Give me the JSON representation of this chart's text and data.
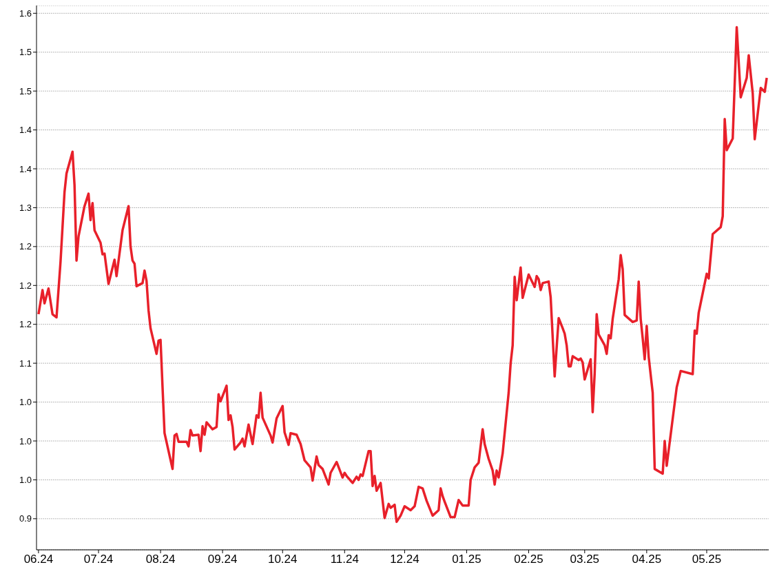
{
  "chart_data": {
    "type": "line",
    "x": [
      "2024-06-01",
      "2024-06-03",
      "2024-06-04",
      "2024-06-06",
      "2024-06-08",
      "2024-06-10",
      "2024-06-12",
      "2024-06-14",
      "2024-06-15",
      "2024-06-18",
      "2024-06-19",
      "2024-06-20",
      "2024-06-21",
      "2024-06-24",
      "2024-06-26",
      "2024-06-27",
      "2024-06-28",
      "2024-06-29",
      "2024-07-02",
      "2024-07-03",
      "2024-07-04",
      "2024-07-06",
      "2024-07-09",
      "2024-07-10",
      "2024-07-13",
      "2024-07-16",
      "2024-07-17",
      "2024-07-18",
      "2024-07-19",
      "2024-07-20",
      "2024-07-23",
      "2024-07-24",
      "2024-07-25",
      "2024-07-26",
      "2024-07-27",
      "2024-07-30",
      "2024-07-31",
      "2024-08-01",
      "2024-08-02",
      "2024-08-03",
      "2024-08-07",
      "2024-08-08",
      "2024-08-09",
      "2024-08-10",
      "2024-08-14",
      "2024-08-15",
      "2024-08-16",
      "2024-08-17",
      "2024-08-20",
      "2024-08-21",
      "2024-08-22",
      "2024-08-23",
      "2024-08-24",
      "2024-08-27",
      "2024-08-29",
      "2024-08-30",
      "2024-08-31",
      "2024-09-03",
      "2024-09-04",
      "2024-09-05",
      "2024-09-06",
      "2024-09-07",
      "2024-09-10",
      "2024-09-11",
      "2024-09-12",
      "2024-09-14",
      "2024-09-16",
      "2024-09-18",
      "2024-09-19",
      "2024-09-20",
      "2024-09-21",
      "2024-09-25",
      "2024-09-26",
      "2024-09-28",
      "2024-10-01",
      "2024-10-02",
      "2024-10-04",
      "2024-10-05",
      "2024-10-08",
      "2024-10-10",
      "2024-10-12",
      "2024-10-15",
      "2024-10-16",
      "2024-10-18",
      "2024-10-19",
      "2024-10-21",
      "2024-10-24",
      "2024-10-25",
      "2024-10-28",
      "2024-10-31",
      "2024-11-01",
      "2024-11-02",
      "2024-11-05",
      "2024-11-07",
      "2024-11-08",
      "2024-11-09",
      "2024-11-10",
      "2024-11-13",
      "2024-11-14",
      "2024-11-15",
      "2024-11-16",
      "2024-11-17",
      "2024-11-19",
      "2024-11-21",
      "2024-11-23",
      "2024-11-24",
      "2024-11-26",
      "2024-11-27",
      "2024-11-29",
      "2024-12-01",
      "2024-12-04",
      "2024-12-06",
      "2024-12-08",
      "2024-12-10",
      "2024-12-12",
      "2024-12-15",
      "2024-12-18",
      "2024-12-19",
      "2024-12-20",
      "2024-12-21",
      "2024-12-24",
      "2024-12-26",
      "2024-12-28",
      "2024-12-30",
      "2025-01-02",
      "2025-01-03",
      "2025-01-05",
      "2025-01-07",
      "2025-01-09",
      "2025-01-10",
      "2025-01-12",
      "2025-01-14",
      "2025-01-15",
      "2025-01-16",
      "2025-01-17",
      "2025-01-19",
      "2025-01-22",
      "2025-01-23",
      "2025-01-24",
      "2025-01-25",
      "2025-01-26",
      "2025-01-28",
      "2025-01-29",
      "2025-02-01",
      "2025-02-04",
      "2025-02-05",
      "2025-02-06",
      "2025-02-07",
      "2025-02-08",
      "2025-02-11",
      "2025-02-12",
      "2025-02-14",
      "2025-02-16",
      "2025-02-18",
      "2025-02-19",
      "2025-02-20",
      "2025-02-21",
      "2025-02-22",
      "2025-02-23",
      "2025-02-26",
      "2025-02-27",
      "2025-02-28",
      "2025-03-01",
      "2025-03-04",
      "2025-03-05",
      "2025-03-06",
      "2025-03-07",
      "2025-03-08",
      "2025-03-11",
      "2025-03-12",
      "2025-03-13",
      "2025-03-14",
      "2025-03-15",
      "2025-03-18",
      "2025-03-19",
      "2025-03-20",
      "2025-03-21",
      "2025-03-25",
      "2025-03-27",
      "2025-03-28",
      "2025-03-29",
      "2025-03-30",
      "2025-03-31",
      "2025-04-01",
      "2025-04-02",
      "2025-04-04",
      "2025-04-05",
      "2025-04-09",
      "2025-04-10",
      "2025-04-11",
      "2025-04-16",
      "2025-04-18",
      "2025-04-24",
      "2025-04-25",
      "2025-04-26",
      "2025-04-27",
      "2025-05-01",
      "2025-05-02",
      "2025-05-04",
      "2025-05-08",
      "2025-05-09",
      "2025-05-10",
      "2025-05-11",
      "2025-05-14",
      "2025-05-16",
      "2025-05-18",
      "2025-05-21",
      "2025-05-22",
      "2025-05-24",
      "2025-05-25",
      "2025-05-28",
      "2025-05-30",
      "2025-05-31"
    ],
    "series": [
      {
        "color": "#e8202a",
        "values": [
          1.163,
          1.194,
          1.177,
          1.196,
          1.163,
          1.159,
          1.23,
          1.32,
          1.344,
          1.372,
          1.329,
          1.232,
          1.263,
          1.302,
          1.318,
          1.284,
          1.306,
          1.271,
          1.255,
          1.24,
          1.241,
          1.202,
          1.233,
          1.212,
          1.271,
          1.302,
          1.25,
          1.232,
          1.228,
          1.199,
          1.203,
          1.219,
          1.206,
          1.168,
          1.145,
          1.112,
          1.129,
          1.13,
          1.069,
          1.01,
          0.964,
          1.007,
          1.009,
          0.999,
          0.999,
          0.993,
          1.014,
          1.007,
          1.008,
          0.987,
          1.019,
          1.008,
          1.024,
          1.015,
          1.018,
          1.06,
          1.051,
          1.071,
          1.027,
          1.033,
          1.018,
          0.989,
          0.998,
          1.003,
          0.993,
          1.021,
          0.996,
          1.033,
          1.03,
          1.062,
          1.03,
          1.007,
          0.998,
          1.029,
          1.045,
          1.011,
          0.995,
          1.01,
          1.008,
          0.996,
          0.975,
          0.966,
          0.949,
          0.98,
          0.969,
          0.964,
          0.944,
          0.959,
          0.973,
          0.953,
          0.959,
          0.955,
          0.946,
          0.954,
          0.95,
          0.957,
          0.955,
          0.987,
          0.987,
          0.942,
          0.955,
          0.936,
          0.946,
          0.901,
          0.919,
          0.914,
          0.918,
          0.896,
          0.904,
          0.916,
          0.911,
          0.916,
          0.941,
          0.939,
          0.923,
          0.904,
          0.911,
          0.939,
          0.929,
          0.922,
          0.902,
          0.902,
          0.924,
          0.917,
          0.917,
          0.95,
          0.966,
          0.972,
          1.015,
          0.996,
          0.977,
          0.962,
          0.944,
          0.962,
          0.953,
          0.984,
          1.062,
          1.1,
          1.123,
          1.211,
          1.181,
          1.223,
          1.184,
          1.214,
          1.198,
          1.212,
          1.208,
          1.194,
          1.203,
          1.205,
          1.185,
          1.083,
          1.158,
          1.145,
          1.138,
          1.123,
          1.096,
          1.096,
          1.109,
          1.104,
          1.106,
          1.101,
          1.079,
          1.105,
          1.037,
          1.087,
          1.163,
          1.137,
          1.123,
          1.112,
          1.136,
          1.132,
          1.157,
          1.208,
          1.239,
          1.221,
          1.162,
          1.153,
          1.155,
          1.205,
          1.157,
          1.132,
          1.105,
          1.148,
          1.108,
          1.062,
          0.964,
          0.958,
          1.0,
          0.968,
          1.069,
          1.09,
          1.086,
          1.142,
          1.138,
          1.165,
          1.215,
          1.209,
          1.266,
          1.275,
          1.289,
          1.414,
          1.374,
          1.389,
          1.532,
          1.442,
          1.467,
          1.496,
          1.447,
          1.388,
          1.454,
          1.449,
          1.467
        ]
      }
    ],
    "xlim": [
      "2024-05-31",
      "2025-06-01"
    ],
    "xticks": [
      {
        "value": "2024-06-01",
        "label": "06.24"
      },
      {
        "value": "2024-07-01",
        "label": "07.24"
      },
      {
        "value": "2024-08-01",
        "label": "08.24"
      },
      {
        "value": "2024-09-01",
        "label": "09.24"
      },
      {
        "value": "2024-10-01",
        "label": "10.24"
      },
      {
        "value": "2024-11-01",
        "label": "11.24"
      },
      {
        "value": "2024-12-01",
        "label": "12.24"
      },
      {
        "value": "2025-01-01",
        "label": "01.25"
      },
      {
        "value": "2025-02-01",
        "label": "02.25"
      },
      {
        "value": "2025-03-01",
        "label": "03.25"
      },
      {
        "value": "2025-04-01",
        "label": "04.25"
      },
      {
        "value": "2025-05-01",
        "label": "05.25"
      }
    ],
    "ylim": [
      0.86,
      1.56
    ],
    "yticks": [
      {
        "value": 0.9,
        "label": "0.9"
      },
      {
        "value": 0.95,
        "label": "1.0"
      },
      {
        "value": 1.0,
        "label": "1.0"
      },
      {
        "value": 1.05,
        "label": "1.0"
      },
      {
        "value": 1.1,
        "label": "1.1"
      },
      {
        "value": 1.15,
        "label": "1.2"
      },
      {
        "value": 1.2,
        "label": "1.2"
      },
      {
        "value": 1.25,
        "label": "1.2"
      },
      {
        "value": 1.3,
        "label": "1.3"
      },
      {
        "value": 1.35,
        "label": "1.4"
      },
      {
        "value": 1.4,
        "label": "1.4"
      },
      {
        "value": 1.45,
        "label": "1.5"
      },
      {
        "value": 1.5,
        "label": "1.5"
      },
      {
        "value": 1.55,
        "label": "1.6"
      }
    ],
    "grid": "y",
    "legend": false,
    "marker": "none",
    "line_style": "solid"
  }
}
